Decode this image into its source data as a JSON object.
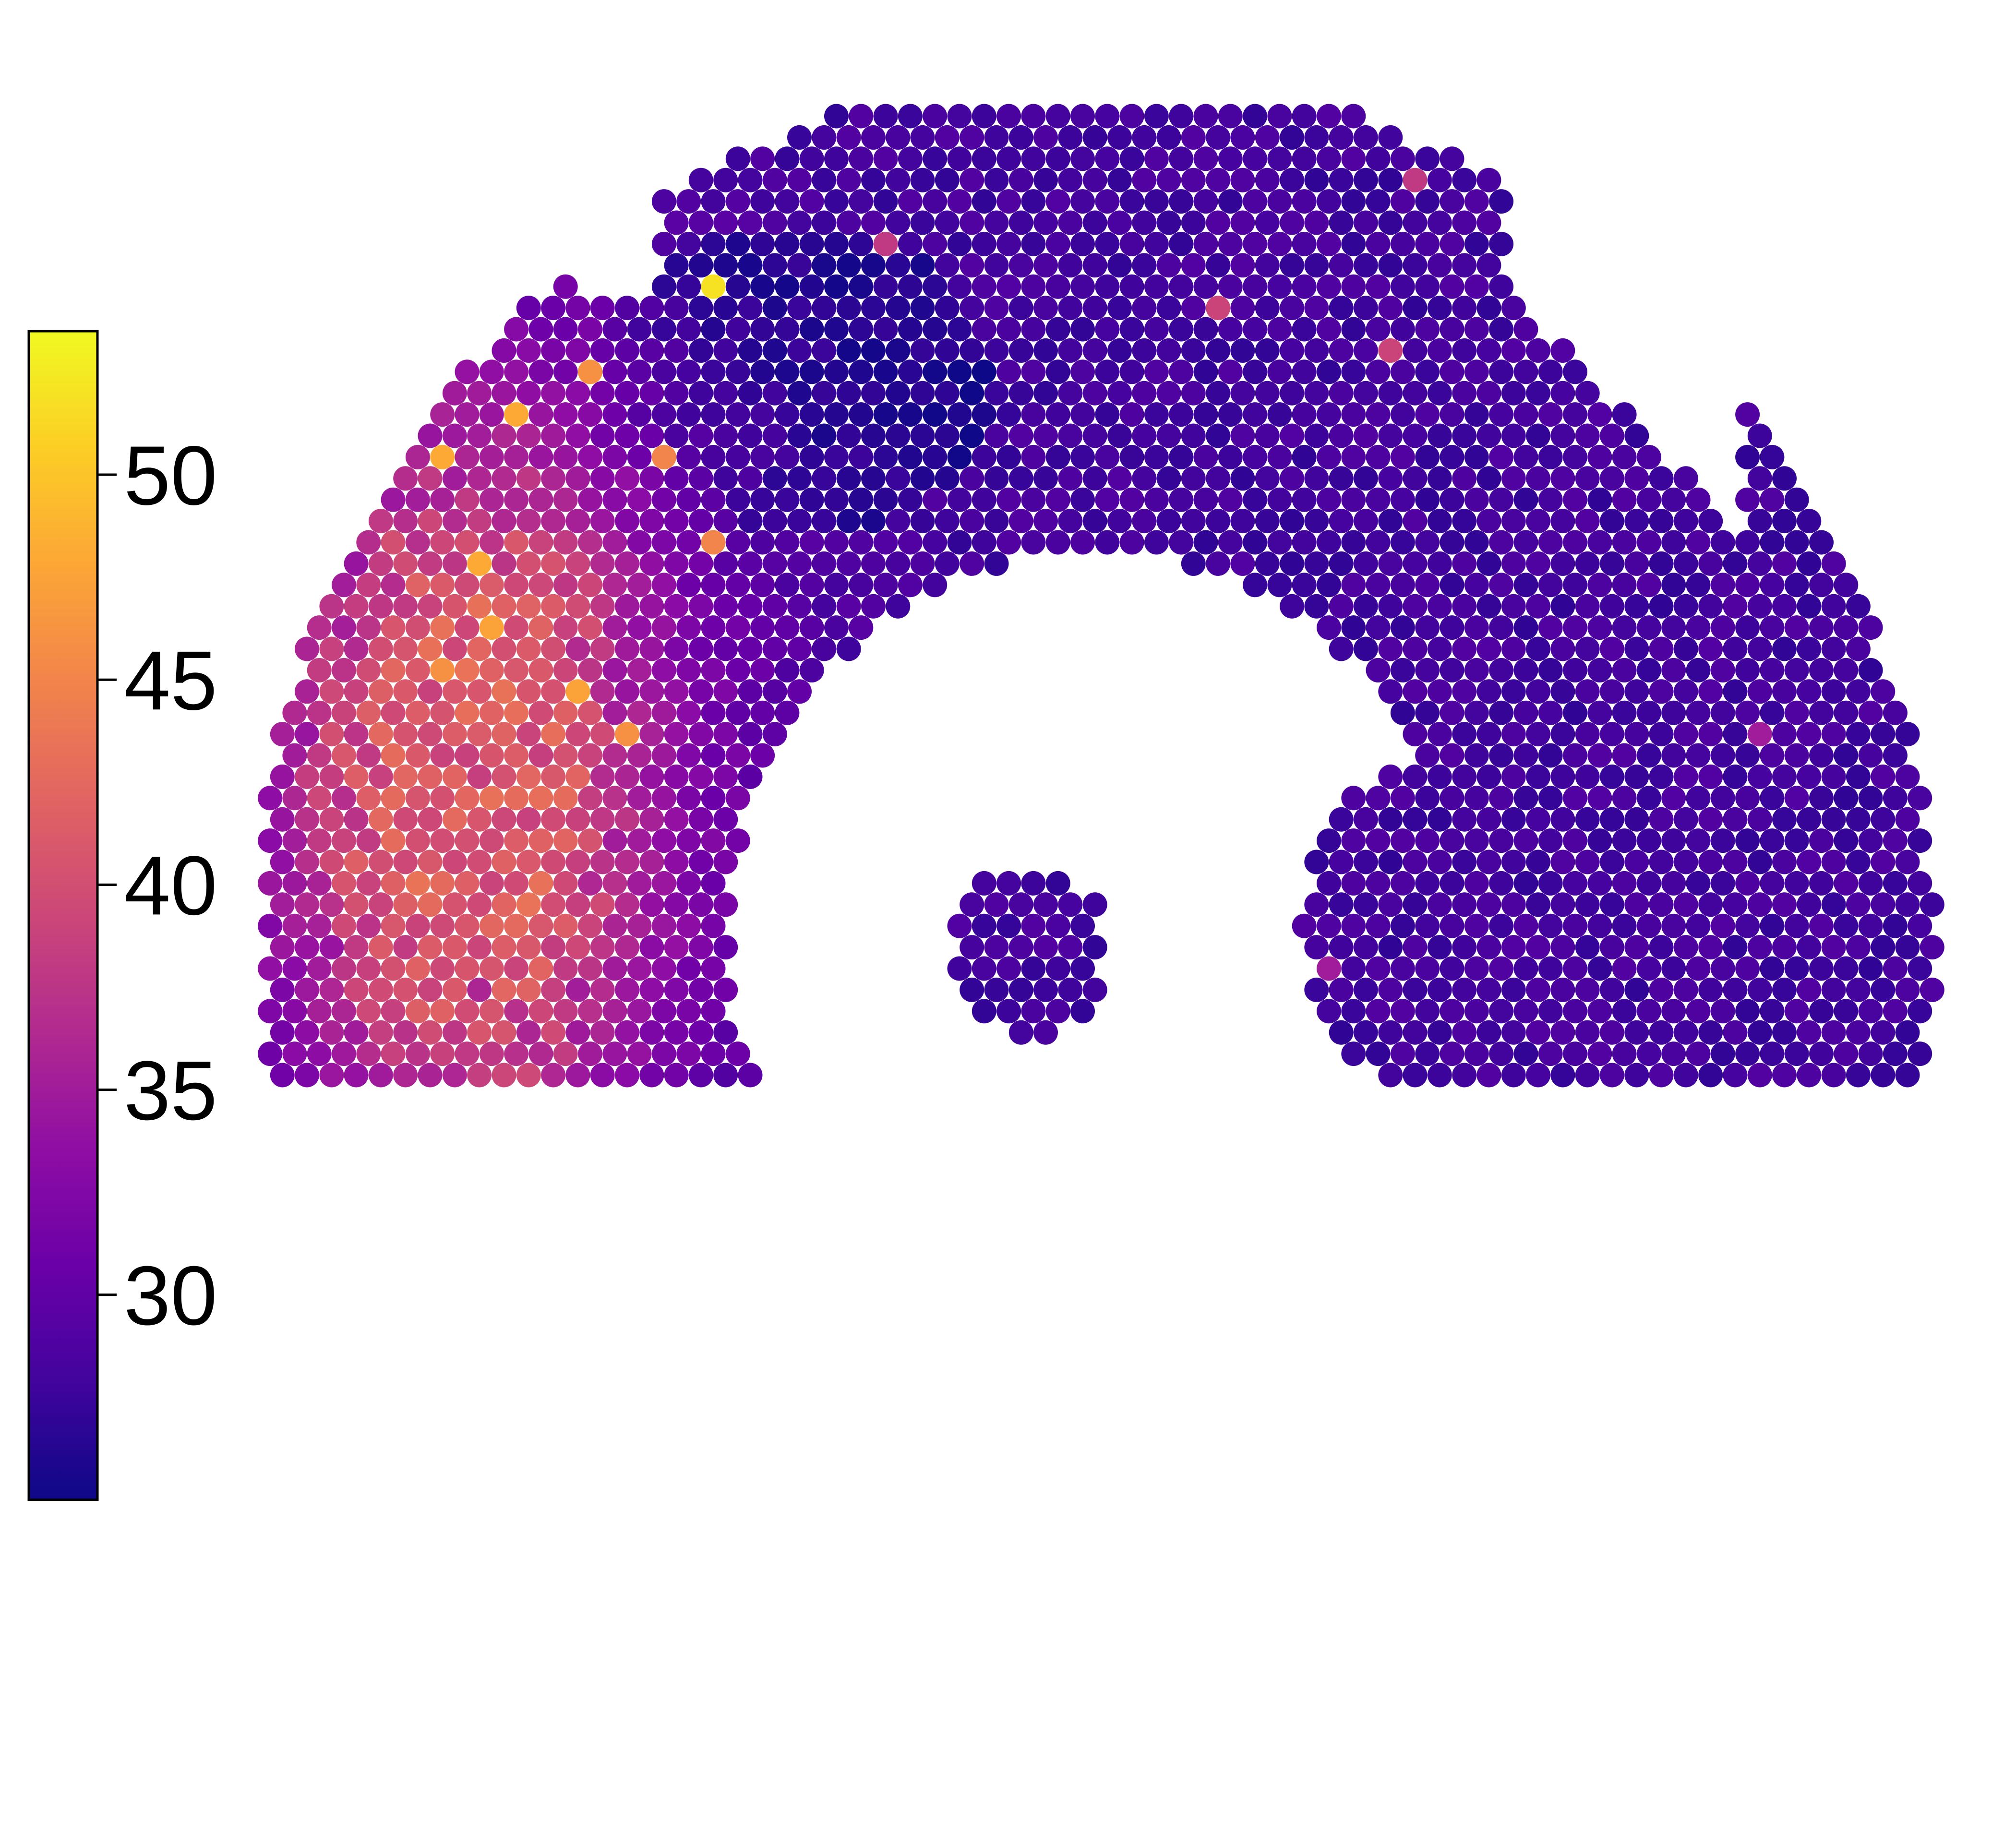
{
  "chart_data": {
    "type": "scatter",
    "title": "",
    "xlabel": "",
    "ylabel": "",
    "grid": false,
    "legend": "none",
    "colorbar": {
      "position": "left",
      "colormap": "plasma",
      "vmin": 25,
      "vmax": 53.5,
      "ticks": [
        30,
        35,
        40,
        45,
        50
      ],
      "tick_labels": [
        "30",
        "35",
        "40",
        "45",
        "50"
      ],
      "colors": [
        "#0d0887",
        "#41049d",
        "#6a00a8",
        "#8f0da4",
        "#b12a90",
        "#cc4778",
        "#e16462",
        "#f2844b",
        "#fca636",
        "#fcce25",
        "#f0f921"
      ]
    },
    "spot_grid": {
      "rows": 46,
      "cols": 70,
      "hex_layout": true,
      "background_value": 28,
      "hot_region_value": 41,
      "hot_region_peak": 48,
      "mid_ring_value": 33.5,
      "low_value": 26,
      "points": [
        {
          "row": 8,
          "col": 20,
          "value": 52
        },
        {
          "row": 14,
          "col": 7,
          "value": 48.5
        },
        {
          "row": 14,
          "col": 12,
          "value": 48
        },
        {
          "row": 16,
          "col": 9,
          "value": 48
        },
        {
          "row": 21,
          "col": 10,
          "value": 48
        },
        {
          "row": 23,
          "col": 1,
          "value": 48.5
        },
        {
          "row": 24,
          "col": 11,
          "value": 47.5
        },
        {
          "row": 27,
          "col": 14,
          "value": 47.5
        },
        {
          "row": 12,
          "col": 15,
          "value": 46
        },
        {
          "row": 10,
          "col": 5,
          "value": 46
        },
        {
          "row": 18,
          "col": 3,
          "value": 45.5
        },
        {
          "row": 26,
          "col": 9,
          "value": 46
        },
        {
          "row": 29,
          "col": 16,
          "value": 46
        },
        {
          "row": 16,
          "col": 18,
          "value": 45
        },
        {
          "row": 20,
          "col": 20,
          "value": 45
        },
        {
          "row": 11,
          "col": 47,
          "value": 39
        },
        {
          "row": 6,
          "col": 27,
          "value": 38
        },
        {
          "row": 3,
          "col": 48,
          "value": 38
        },
        {
          "row": 9,
          "col": 40,
          "value": 39
        },
        {
          "row": 12,
          "col": 56,
          "value": 38
        },
        {
          "row": 7,
          "col": 63,
          "value": 38
        },
        {
          "row": 26,
          "col": 37,
          "value": 39
        },
        {
          "row": 39,
          "col": 5,
          "value": 38
        },
        {
          "row": 41,
          "col": 10,
          "value": 36
        },
        {
          "row": 44,
          "col": 35,
          "value": 36
        },
        {
          "row": 24,
          "col": 33,
          "value": 35
        },
        {
          "row": 40,
          "col": 45,
          "value": 35
        },
        {
          "row": 29,
          "col": 62,
          "value": 35
        },
        {
          "row": 0,
          "col": 51,
          "value": 35
        }
      ]
    }
  }
}
